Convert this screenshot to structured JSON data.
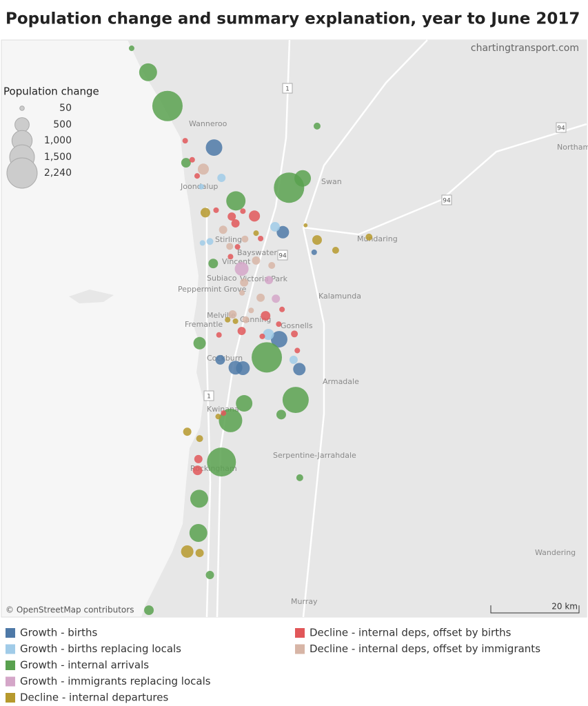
{
  "title": "Population change and summary explanation, year to June 2017",
  "source": "chartingtransport.com",
  "attribution": "© OpenStreetMap contributors",
  "scale_label": "20 km",
  "map": {
    "lon": [
      115.28,
      116.7
    ],
    "lat": [
      -31.44,
      -32.62
    ]
  },
  "places": [
    "Wanneroo",
    "Joondalup",
    "Swan",
    "Stirling",
    "Bayswater",
    "Vincent",
    "Subiaco",
    "Victoria Park",
    "Peppermint Grove",
    "Mundaring",
    "Kalamunda",
    "Melville",
    "Fremantle",
    "Canning",
    "Gosnells",
    "Cockburn",
    "Armadale",
    "Kwinana",
    "Serpentine-Jarrahdale",
    "Rockingham",
    "Murray",
    "Wandering",
    "Northam"
  ],
  "road_shields": [
    "1",
    "94",
    "94",
    "94",
    "1"
  ],
  "size_legend": {
    "title": "Population change",
    "values": [
      50,
      500,
      {
        "value": 1000,
        "label": "1,000"
      },
      {
        "value": 1500,
        "label": "1,500"
      },
      {
        "value": 2240,
        "label": "2,240"
      }
    ]
  },
  "series": [
    {
      "name": "Growth - births",
      "color": "#4e79a7",
      "points": [
        {
          "lon": 115.796,
          "lat": -31.66,
          "value": 665
        },
        {
          "lon": 115.963,
          "lat": -31.833,
          "value": 375
        },
        {
          "lon": 116.039,
          "lat": -31.874,
          "value": 75
        },
        {
          "lon": 115.954,
          "lat": -32.052,
          "value": 665
        },
        {
          "lon": 115.811,
          "lat": -32.094,
          "value": 225
        },
        {
          "lon": 115.848,
          "lat": -32.11,
          "value": 465
        },
        {
          "lon": 115.866,
          "lat": -32.111,
          "value": 465
        },
        {
          "lon": 116.003,
          "lat": -32.113,
          "value": 375
        }
      ]
    },
    {
      "name": "Growth - births replacing locals",
      "color": "#a0cbe8",
      "points": [
        {
          "lon": 115.814,
          "lat": -31.722,
          "value": 165
        },
        {
          "lon": 115.765,
          "lat": -31.74,
          "value": 75
        },
        {
          "lon": 115.944,
          "lat": -31.822,
          "value": 225
        },
        {
          "lon": 115.786,
          "lat": -31.852,
          "value": 115
        },
        {
          "lon": 115.768,
          "lat": -31.855,
          "value": 75
        },
        {
          "lon": 115.928,
          "lat": -32.042,
          "value": 300
        },
        {
          "lon": 115.989,
          "lat": -32.094,
          "value": 165
        }
      ]
    },
    {
      "name": "Growth - internal arrivals",
      "color": "#59a14f",
      "points": [
        {
          "lon": 115.596,
          "lat": -31.457,
          "value": 75
        },
        {
          "lon": 115.636,
          "lat": -31.506,
          "value": 780
        },
        {
          "lon": 115.683,
          "lat": -31.575,
          "value": 2240
        },
        {
          "lon": 116.046,
          "lat": -31.616,
          "value": 115
        },
        {
          "lon": 115.728,
          "lat": -31.691,
          "value": 225
        },
        {
          "lon": 115.978,
          "lat": -31.742,
          "value": 2240
        },
        {
          "lon": 116.011,
          "lat": -31.723,
          "value": 665
        },
        {
          "lon": 115.849,
          "lat": -31.769,
          "value": 905
        },
        {
          "lon": 115.794,
          "lat": -31.897,
          "value": 225
        },
        {
          "lon": 115.761,
          "lat": -32.06,
          "value": 375
        },
        {
          "lon": 115.924,
          "lat": -32.089,
          "value": 2240
        },
        {
          "lon": 115.994,
          "lat": -32.176,
          "value": 1670
        },
        {
          "lon": 115.869,
          "lat": -32.183,
          "value": 665
        },
        {
          "lon": 115.959,
          "lat": -32.206,
          "value": 225
        },
        {
          "lon": 115.836,
          "lat": -32.218,
          "value": 1340
        },
        {
          "lon": 115.814,
          "lat": -32.303,
          "value": 2040
        },
        {
          "lon": 115.76,
          "lat": -32.378,
          "value": 780
        },
        {
          "lon": 116.004,
          "lat": -32.335,
          "value": 115
        },
        {
          "lon": 115.758,
          "lat": -32.448,
          "value": 780
        },
        {
          "lon": 115.786,
          "lat": -32.534,
          "value": 165
        },
        {
          "lon": 115.638,
          "lat": -32.606,
          "value": 225
        }
      ]
    },
    {
      "name": "Growth - immigrants replacing locals",
      "color": "#d4a6c8",
      "points": [
        {
          "lon": 115.863,
          "lat": -31.908,
          "value": 465
        },
        {
          "lon": 115.929,
          "lat": -31.931,
          "value": 165
        },
        {
          "lon": 115.946,
          "lat": -31.969,
          "value": 165
        }
      ]
    },
    {
      "name": "Decline - internal departures",
      "color": "#b6992d",
      "points": [
        {
          "lon": 115.775,
          "lat": -31.793,
          "value": 225
        },
        {
          "lon": 116.018,
          "lat": -31.819,
          "value": 40
        },
        {
          "lon": 116.046,
          "lat": -31.849,
          "value": 225
        },
        {
          "lon": 116.172,
          "lat": -31.843,
          "value": 115
        },
        {
          "lon": 116.091,
          "lat": -31.87,
          "value": 115
        },
        {
          "lon": 115.898,
          "lat": -31.835,
          "value": 75
        },
        {
          "lon": 115.829,
          "lat": -32.012,
          "value": 75
        },
        {
          "lon": 115.848,
          "lat": -32.015,
          "value": 75
        },
        {
          "lon": 115.806,
          "lat": -32.21,
          "value": 75
        },
        {
          "lon": 115.731,
          "lat": -32.241,
          "value": 165
        },
        {
          "lon": 115.761,
          "lat": -32.255,
          "value": 115
        },
        {
          "lon": 115.731,
          "lat": -32.486,
          "value": 375
        },
        {
          "lon": 115.761,
          "lat": -32.489,
          "value": 165
        }
      ]
    },
    {
      "name": "Decline - internal deps, offset by births",
      "color": "#e15759",
      "points": [
        {
          "lon": 115.726,
          "lat": -31.646,
          "value": 75
        },
        {
          "lon": 115.743,
          "lat": -31.685,
          "value": 75
        },
        {
          "lon": 115.755,
          "lat": -31.718,
          "value": 75
        },
        {
          "lon": 115.801,
          "lat": -31.788,
          "value": 75
        },
        {
          "lon": 115.839,
          "lat": -31.801,
          "value": 165
        },
        {
          "lon": 115.848,
          "lat": -31.815,
          "value": 165
        },
        {
          "lon": 115.894,
          "lat": -31.8,
          "value": 300
        },
        {
          "lon": 115.866,
          "lat": -31.79,
          "value": 75
        },
        {
          "lon": 115.909,
          "lat": -31.846,
          "value": 75
        },
        {
          "lon": 115.853,
          "lat": -31.863,
          "value": 75
        },
        {
          "lon": 115.836,
          "lat": -31.883,
          "value": 75
        },
        {
          "lon": 115.921,
          "lat": -32.004,
          "value": 225
        },
        {
          "lon": 115.961,
          "lat": -31.991,
          "value": 75
        },
        {
          "lon": 115.863,
          "lat": -32.035,
          "value": 165
        },
        {
          "lon": 115.953,
          "lat": -32.021,
          "value": 75
        },
        {
          "lon": 115.991,
          "lat": -32.041,
          "value": 115
        },
        {
          "lon": 115.808,
          "lat": -32.043,
          "value": 75
        },
        {
          "lon": 115.913,
          "lat": -32.046,
          "value": 75
        },
        {
          "lon": 115.998,
          "lat": -32.075,
          "value": 75
        },
        {
          "lon": 115.819,
          "lat": -32.203,
          "value": 75
        },
        {
          "lon": 115.758,
          "lat": -32.297,
          "value": 165
        },
        {
          "lon": 115.756,
          "lat": -32.32,
          "value": 225
        }
      ]
    },
    {
      "name": "Decline - internal deps, offset by immigrants",
      "color": "#d7b5a6",
      "points": [
        {
          "lon": 115.77,
          "lat": -31.704,
          "value": 300
        },
        {
          "lon": 115.818,
          "lat": -31.828,
          "value": 165
        },
        {
          "lon": 115.834,
          "lat": -31.862,
          "value": 115
        },
        {
          "lon": 115.871,
          "lat": -31.847,
          "value": 115
        },
        {
          "lon": 115.898,
          "lat": -31.891,
          "value": 165
        },
        {
          "lon": 115.936,
          "lat": -31.901,
          "value": 115
        },
        {
          "lon": 115.869,
          "lat": -31.936,
          "value": 165
        },
        {
          "lon": 115.909,
          "lat": -31.967,
          "value": 165
        },
        {
          "lon": 115.864,
          "lat": -31.957,
          "value": 75
        },
        {
          "lon": 115.841,
          "lat": -32.001,
          "value": 165
        },
        {
          "lon": 115.886,
          "lat": -31.993,
          "value": 75
        },
        {
          "lon": 115.873,
          "lat": -32.012,
          "value": 115
        }
      ]
    }
  ]
}
